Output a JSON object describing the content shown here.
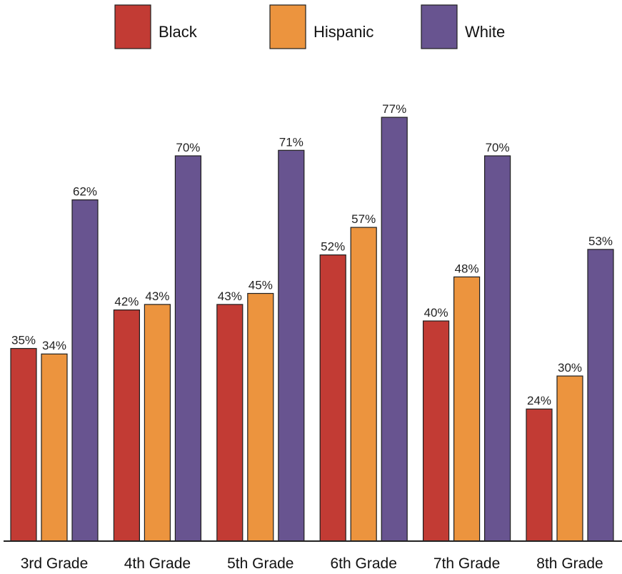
{
  "chart_data": {
    "type": "bar",
    "categories": [
      "3rd Grade",
      "4th Grade",
      "5th Grade",
      "6th Grade",
      "7th Grade",
      "8th Grade"
    ],
    "series": [
      {
        "name": "Black",
        "color": "#c23b34",
        "values": [
          35,
          42,
          43,
          52,
          40,
          24
        ]
      },
      {
        "name": "Hispanic",
        "color": "#ec943e",
        "values": [
          34,
          43,
          45,
          57,
          48,
          30
        ]
      },
      {
        "name": "White",
        "color": "#685490",
        "values": [
          62,
          70,
          71,
          77,
          70,
          53
        ]
      }
    ],
    "value_suffix": "%",
    "ylim": [
      0,
      100
    ],
    "grid": false,
    "legend": "top-center",
    "title": "",
    "xlabel": "",
    "ylabel": ""
  }
}
